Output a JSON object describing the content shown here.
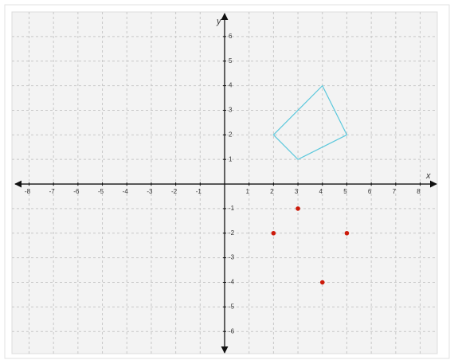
{
  "chart_data": {
    "type": "coordinate-plane",
    "x_label": "x",
    "y_label": "y",
    "xlim": [
      -8.7,
      8.7
    ],
    "ylim": [
      -6.9,
      7
    ],
    "xticks": [
      -8,
      -7,
      -6,
      -5,
      -4,
      -3,
      -2,
      -1,
      1,
      2,
      3,
      4,
      5,
      6,
      7,
      8
    ],
    "yticks": [
      -6,
      -5,
      -4,
      -3,
      -2,
      -1,
      1,
      2,
      3,
      4,
      5,
      6
    ],
    "grid": true,
    "series": [
      {
        "type": "polygon",
        "color": "#5cc8dc",
        "x": [
          2,
          4,
          5,
          3
        ],
        "values": [
          2,
          4,
          2,
          1
        ]
      },
      {
        "type": "scatter",
        "color": "#cc1a0a",
        "x": [
          3,
          2,
          5,
          4
        ],
        "values": [
          -1,
          -2,
          -2,
          -4
        ]
      }
    ]
  }
}
